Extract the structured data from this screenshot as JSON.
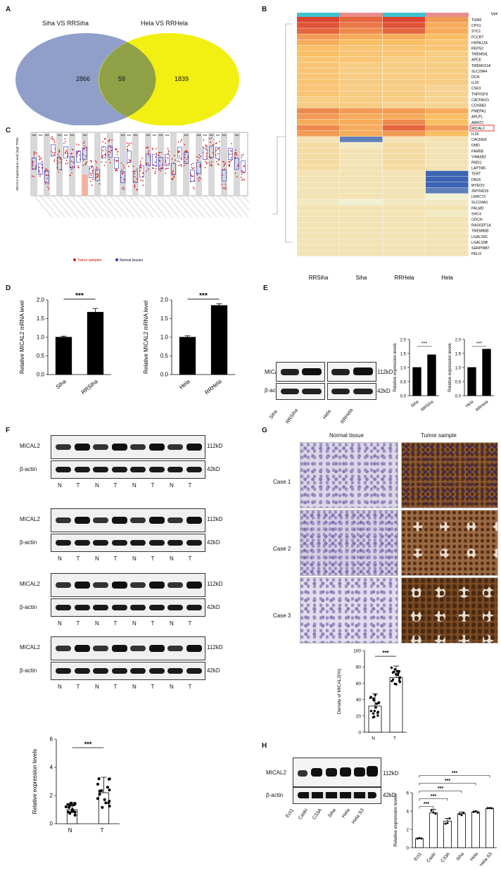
{
  "panels": {
    "A": {
      "label": "A",
      "set1": "Siha VS RRSiha",
      "set2": "Hela  VS RRHela",
      "only1": "2866",
      "overlap": "59",
      "only2": "1839"
    },
    "B": {
      "label": "B",
      "columns": [
        "RRSiha",
        "Siha",
        "RRHela",
        "Hela"
      ],
      "legend_title": "type",
      "legend_ticks": [
        "15",
        "10",
        "5",
        "0",
        "-5"
      ],
      "genes": [
        "TGM2",
        "CPS1",
        "STC1",
        "FCCRT",
        "HSPA12A",
        "REPS2",
        "TMEM59L",
        "APCE",
        "TMEM151A",
        "SLC29A4",
        "DCN",
        "IL33",
        "CSF3",
        "TNFRSF9",
        "CACNA1G",
        "COXBB2",
        "PMEPA1",
        "APLP1",
        "ARNT2",
        "MICAL2",
        "IL18",
        "CACNG6",
        "DMD",
        "FAM5B",
        "VWA5B2",
        "PADI1",
        "LAPTM5",
        "TERT",
        "DN16",
        "MYEOV",
        "ZMYND15",
        "LRRC73",
        "SLCO4A1",
        "PALMD",
        "SHC4",
        "OGCH",
        "RASGEF1A",
        "TMEM86B",
        "LGALS9C",
        "LGALS9B",
        "SERPINB7",
        "PELI2"
      ],
      "highlight_gene": "MICAL2",
      "heat_values": [
        [
          14,
          12,
          14,
          9
        ],
        [
          13,
          11,
          13,
          8
        ],
        [
          12,
          10,
          12,
          8
        ],
        [
          9,
          8,
          8,
          7
        ],
        [
          8,
          7,
          7,
          6
        ],
        [
          7,
          6,
          6,
          6
        ],
        [
          7,
          6,
          6,
          5
        ],
        [
          6,
          6,
          5,
          5
        ],
        [
          6,
          5,
          5,
          5
        ],
        [
          6,
          5,
          5,
          5
        ],
        [
          6,
          5,
          5,
          5
        ],
        [
          6,
          5,
          5,
          5
        ],
        [
          6,
          5,
          5,
          4
        ],
        [
          6,
          5,
          5,
          4
        ],
        [
          5,
          5,
          5,
          4
        ],
        [
          5,
          5,
          4,
          4
        ],
        [
          10,
          9,
          9,
          8
        ],
        [
          9,
          8,
          8,
          7
        ],
        [
          8,
          8,
          10,
          7
        ],
        [
          10,
          8,
          12,
          9
        ],
        [
          9,
          8,
          9,
          7
        ],
        [
          2,
          -4,
          2,
          2
        ],
        [
          3,
          1,
          3,
          2
        ],
        [
          3,
          2,
          3,
          2
        ],
        [
          3,
          2,
          3,
          2
        ],
        [
          3,
          2,
          3,
          2
        ],
        [
          3,
          2,
          3,
          2
        ],
        [
          2,
          2,
          2,
          -5
        ],
        [
          2,
          2,
          2,
          -5
        ],
        [
          2,
          2,
          2,
          -5
        ],
        [
          2,
          2,
          2,
          -4
        ],
        [
          2,
          2,
          2,
          0
        ],
        [
          1,
          0,
          1,
          1
        ],
        [
          2,
          2,
          2,
          2
        ],
        [
          2,
          2,
          2,
          1
        ],
        [
          2,
          2,
          2,
          2
        ],
        [
          2,
          2,
          2,
          2
        ],
        [
          2,
          2,
          2,
          2
        ],
        [
          2,
          2,
          2,
          2
        ],
        [
          2,
          2,
          2,
          2
        ],
        [
          2,
          2,
          2,
          2
        ],
        [
          2,
          2,
          2,
          2
        ]
      ]
    },
    "C": {
      "label": "C",
      "ylabel": "MICAL2 Expression Level (log2 TPM)",
      "legend_tumor": "Tumor samples",
      "legend_normal": "Normal tissues"
    },
    "D": {
      "label": "D",
      "sig": "***",
      "left": {
        "ylabel": "Relative MICAL2 mRNA level",
        "categories": [
          "Siha",
          "RRSiha"
        ],
        "values": [
          1.0,
          1.67
        ],
        "errors": [
          0.03,
          0.1
        ],
        "yticks": [
          "0.0",
          "0.5",
          "1.0",
          "1.5",
          "2.0"
        ],
        "ylim": [
          0,
          2.0
        ]
      },
      "right": {
        "ylabel": "Relative MICAL2 mRNA level",
        "categories": [
          "Hela",
          "RRHela"
        ],
        "values": [
          1.0,
          1.85
        ],
        "errors": [
          0.04,
          0.05
        ],
        "yticks": [
          "0.0",
          "0.5",
          "1.0",
          "1.5",
          "2.0"
        ],
        "ylim": [
          0,
          2.0
        ]
      }
    },
    "E": {
      "label": "E",
      "protein1": "MICAL2",
      "protein2": "β-actin",
      "kd1": "112kD",
      "kd2": "42kD",
      "lanes": [
        "Siha",
        "RRSiha",
        "Hela",
        "RRHela"
      ],
      "sig": "***",
      "ylabel": "Relative expression levels",
      "chartA": {
        "categories": [
          "Siha",
          "RRSiha"
        ],
        "values": [
          1.0,
          1.45
        ],
        "yticks": [
          "0.0",
          "0.5",
          "1.0",
          "1.5",
          "2.0"
        ],
        "ylim": [
          0,
          2.0
        ]
      },
      "chartB": {
        "categories": [
          "Hela",
          "RRHela"
        ],
        "values": [
          1.0,
          1.65
        ],
        "yticks": [
          "0.0",
          "0.5",
          "1.0",
          "1.5",
          "2.0"
        ],
        "ylim": [
          0,
          2.0
        ]
      }
    },
    "F": {
      "label": "F",
      "protein1": "MICAL2",
      "protein2": "β-actin",
      "kd1": "112kD",
      "kd2": "42kD",
      "lanes": [
        "N",
        "T",
        "N",
        "T",
        "N",
        "T",
        "N",
        "T"
      ],
      "chart": {
        "ylabel": "Relative expression levels",
        "categories": [
          "N",
          "T"
        ],
        "values": [
          1.0,
          2.2
        ],
        "errors": [
          0.5,
          1.1
        ],
        "yticks": [
          "0",
          "2",
          "4",
          "6"
        ],
        "ylim": [
          0,
          6
        ],
        "sig": "***"
      }
    },
    "G": {
      "label": "G",
      "col1": "Normal tissue",
      "col2": "Tumor sample",
      "cases": [
        "Case 1",
        "Case 2",
        "Case 3"
      ],
      "chart": {
        "ylabel": "Density of MICAL2(%)",
        "categories": [
          "N",
          "T"
        ],
        "values": [
          32,
          67
        ],
        "errors": [
          15,
          14
        ],
        "yticks": [
          "0",
          "20",
          "40",
          "60",
          "80",
          "100"
        ],
        "ylim": [
          0,
          100
        ],
        "sig": "***"
      }
    },
    "H": {
      "label": "H",
      "protein1": "MICAL2",
      "protein2": "β-actin",
      "kd1": "112kD",
      "kd2": "42kD",
      "lanes": [
        "Ect1",
        "Caski",
        "C33A",
        "Siha",
        "Hela",
        "Hela S3"
      ],
      "chart": {
        "ylabel": "Relative expression levels",
        "categories": [
          "Ect1",
          "Caski",
          "C33A",
          "Siha",
          "Hela",
          "Hela S3"
        ],
        "values": [
          1.0,
          3.8,
          2.9,
          3.7,
          3.9,
          4.3
        ],
        "errors": [
          0.05,
          0.4,
          0.3,
          0.2,
          0.1,
          0.05
        ],
        "yticks": [
          "0",
          "2",
          "4",
          "6"
        ],
        "ylim": [
          0,
          6
        ],
        "sig": "***"
      }
    }
  }
}
